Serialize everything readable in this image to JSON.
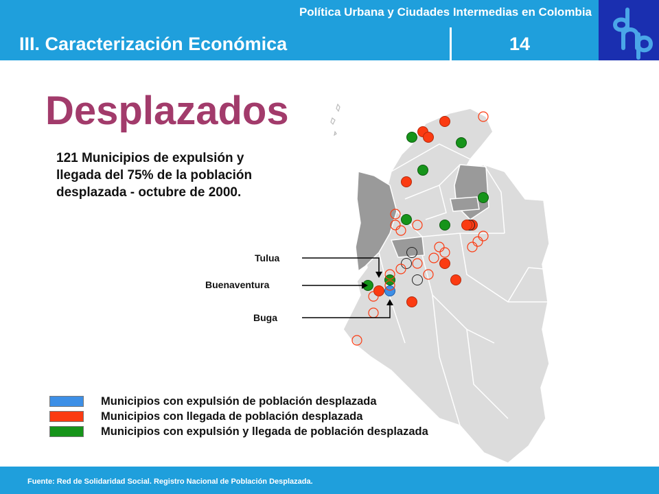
{
  "header": {
    "subtitle": "Política Urbana y Ciudades Intermedias en Colombia",
    "section": "III. Caracterización Económica",
    "page_number": "14"
  },
  "title": "Desplazados",
  "description": "121 Municipios de expulsión y llegada del 75% de la población desplazada - octubre de 2000.",
  "callouts": {
    "tulua": "Tulua",
    "buenaventura": "Buenaventura",
    "buga": "Buga"
  },
  "legend": [
    {
      "label": "Municipios con expulsión de población desplazada",
      "color": "#3d8fe6"
    },
    {
      "label": "Municipios con llegada de población desplazada",
      "color": "#fb3b12"
    },
    {
      "label": "Municipios con expulsión y llegada de población desplazada",
      "color": "#16941a"
    }
  ],
  "colors": {
    "brand_blue": "#1f9fdc",
    "logo_blue": "#1a2fb0",
    "title": "#a23b6b",
    "map_light": "#dcdcdc",
    "map_dark": "#9a9a9a"
  },
  "footer": {
    "source": "Fuente: Red de Solidaridad Social. Registro Nacional de Población Desplazada."
  }
}
